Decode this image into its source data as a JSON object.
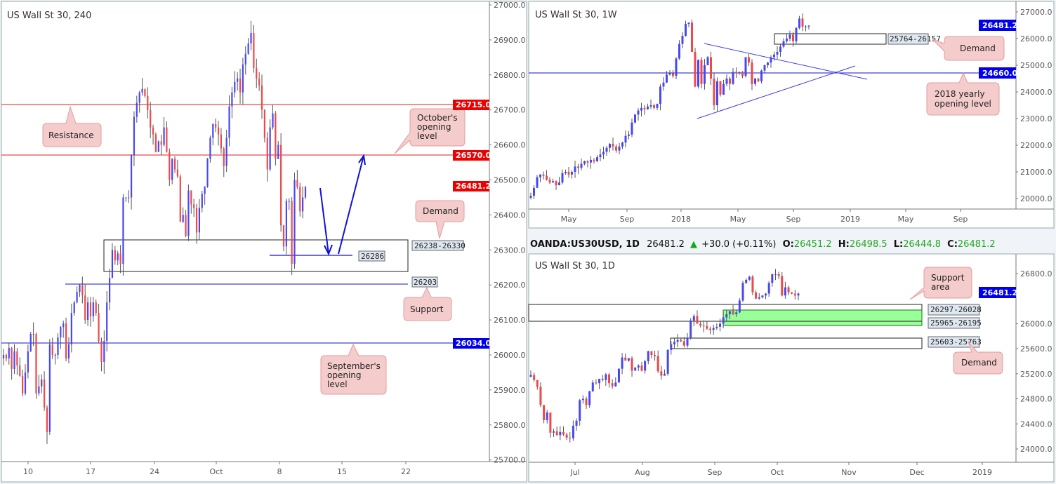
{
  "colors": {
    "up": "#4747f5",
    "down": "#f04848",
    "wick": "#555555",
    "red_tag": "#ee0000",
    "blue_tag": "#0000ee",
    "zone_green": "#99ff99",
    "bubble": "#f5cccc",
    "bubble_border": "#e39c9c",
    "label_bg": "#dfe8f0"
  },
  "header": {
    "symbol": "OANDA:US30USD, 1D",
    "price": "26481.2",
    "change": "+30.0 (+0.11%)",
    "o_label": "O:",
    "o": "26451.2",
    "h_label": "H:",
    "h": "26498.5",
    "l_label": "L:",
    "l": "26444.8",
    "c_label": "C:",
    "c": "26481.2"
  },
  "chart_data": [
    {
      "id": "h4",
      "type": "candlestick",
      "title": "US Wall St 30, 240",
      "ylim": [
        25700,
        27000
      ],
      "y_ticks": [
        "27000.0",
        "26900.0",
        "26800.0",
        "26700.0",
        "26600.0",
        "26500.0",
        "26400.0",
        "26300.0",
        "26200.0",
        "26100.0",
        "26000.0",
        "25900.0",
        "25800.0",
        "25700.0"
      ],
      "x_ticks": [
        "10",
        "17",
        "24",
        "Oct",
        "8",
        "15",
        "22"
      ],
      "closes": [
        26000,
        25990,
        26020,
        25960,
        26010,
        25970,
        25940,
        25890,
        25950,
        26010,
        26060,
        26060,
        25890,
        25910,
        25930,
        25850,
        25780,
        26030,
        26000,
        26000,
        26050,
        26080,
        26090,
        25990,
        26030,
        26120,
        26150,
        26180,
        26200,
        26170,
        26100,
        26150,
        26110,
        26150,
        26120,
        26040,
        25980,
        26040,
        26150,
        26220,
        26300,
        26270,
        26290,
        26260,
        26450,
        26450,
        26450,
        26570,
        26680,
        26720,
        26750,
        26760,
        26740,
        26700,
        26650,
        26630,
        26580,
        26610,
        26600,
        26650,
        26580,
        26500,
        26560,
        26530,
        26510,
        26380,
        26400,
        26340,
        26470,
        26430,
        26420,
        26350,
        26420,
        26460,
        26480,
        26560,
        26620,
        26660,
        26650,
        26630,
        26590,
        26540,
        26620,
        26710,
        26750,
        26780,
        26790,
        26750,
        26830,
        26860,
        26890,
        26920,
        26820,
        26790,
        26770,
        26700,
        26620,
        26530,
        26650,
        26690,
        26560,
        26600,
        26370,
        26310,
        26440,
        26440,
        26260,
        26500,
        26480,
        26410,
        26450,
        26480
      ],
      "levels": [
        {
          "price": "26715.0",
          "kind": "resistance"
        },
        {
          "price": "26570.0",
          "kind": "october_open"
        },
        {
          "price": "26034.0",
          "kind": "september_open"
        }
      ],
      "last_price": "26481.2",
      "zone_label": "26238-26330",
      "line_label_1": "26286",
      "line_label_2": "26203",
      "bubbles": {
        "resistance": "Resistance",
        "october": [
          "October's",
          "opening",
          "level"
        ],
        "demand": "Demand",
        "support": "Support",
        "september": [
          "September's",
          "opening",
          "level"
        ]
      }
    },
    {
      "id": "w1",
      "type": "candlestick",
      "title": "US Wall St 30, 1W",
      "ylim": [
        19600,
        27100
      ],
      "y_ticks": [
        "27000.0",
        "26000.0",
        "25000.0",
        "24000.0",
        "23000.0",
        "22000.0",
        "21000.0",
        "20000.0"
      ],
      "x_ticks": [
        "May",
        "Sep",
        "2018",
        "May",
        "Sep",
        "2019",
        "May",
        "Sep"
      ],
      "closes": [
        20100,
        20400,
        20800,
        20900,
        20850,
        20700,
        20600,
        20650,
        20500,
        20600,
        20950,
        21000,
        20900,
        21000,
        21200,
        21150,
        21300,
        21400,
        21350,
        21450,
        21400,
        21550,
        21650,
        21750,
        21900,
        22050,
        21950,
        21800,
        21950,
        22100,
        22350,
        22400,
        22850,
        23150,
        23300,
        23400,
        23350,
        23450,
        23500,
        23400,
        23550,
        24200,
        24350,
        24650,
        24700,
        24600,
        25250,
        25800,
        26100,
        26550,
        26600,
        25500,
        24200,
        25200,
        24300,
        25000,
        25300,
        24500,
        23500,
        24400,
        23900,
        24300,
        24500,
        24300,
        24750,
        24700,
        24750,
        24600,
        25300,
        25100,
        24300,
        24500,
        24400,
        24800,
        25000,
        25100,
        25300,
        25400,
        25500,
        25700,
        25900,
        26000,
        26150,
        25900,
        26400,
        26750,
        26450,
        26450,
        26480
      ],
      "last_price": "26481.2",
      "level": "24660.0",
      "zone_label": "25764-26157",
      "bubbles": {
        "demand": "Demand",
        "yearly": [
          "2018 yearly",
          "opening level"
        ]
      }
    },
    {
      "id": "d1",
      "type": "candlestick",
      "title": "US Wall St 30, 1D",
      "ylim": [
        23800,
        27000
      ],
      "y_ticks": [
        "26800.0",
        "26000.0",
        "25600.0",
        "25200.0",
        "24800.0",
        "24400.0",
        "24000.0"
      ],
      "x_ticks": [
        "Jul",
        "Aug",
        "Sep",
        "Oct",
        "Nov",
        "Dec",
        "2019"
      ],
      "closes": [
        25180,
        25100,
        24990,
        24700,
        24460,
        24580,
        24260,
        24280,
        24220,
        24270,
        24230,
        24180,
        24170,
        24370,
        24450,
        24780,
        24800,
        24700,
        24920,
        25060,
        25050,
        25120,
        25100,
        25190,
        25050,
        25000,
        25060,
        25280,
        25460,
        25410,
        25450,
        25250,
        25300,
        25330,
        25250,
        25400,
        25560,
        25500,
        25480,
        25240,
        25170,
        25200,
        25580,
        25670,
        25710,
        25740,
        25720,
        25650,
        25770,
        26050,
        26120,
        26000,
        25970,
        25960,
        25920,
        25900,
        25930,
        25950,
        26000,
        26100,
        26150,
        26200,
        26150,
        26180,
        26370,
        26650,
        26700,
        26750,
        26500,
        26400,
        26420,
        26450,
        26480,
        26650,
        26790,
        26790,
        26760,
        26450,
        26580,
        26500,
        26480,
        26450,
        26481
      ],
      "last_price": "26481.2",
      "zone_labels": [
        "26297-26028",
        "25965-26195",
        "25603-25763"
      ],
      "bubbles": {
        "support": [
          "Support",
          "area"
        ],
        "demand": "Demand"
      }
    }
  ]
}
